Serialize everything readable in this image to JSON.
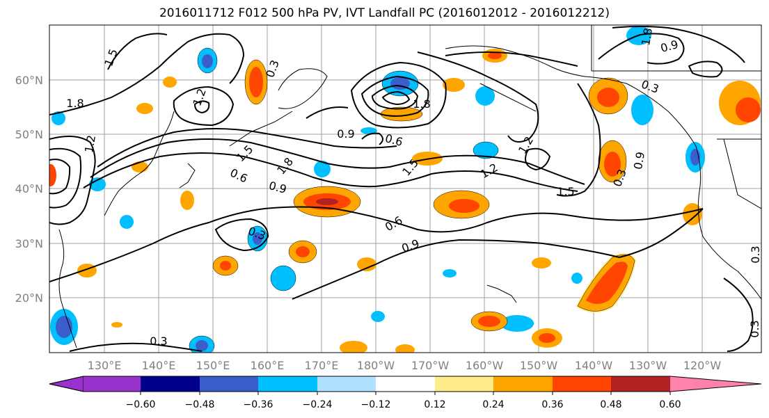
{
  "title": "2016011712 F012 500 hPa PV, IVT Landfall PC (2016012012 - 2016012212)",
  "map": {
    "lat_labels": [
      "60°N",
      "50°N",
      "40°N",
      "30°N",
      "20°N"
    ],
    "lon_labels": [
      "130°E",
      "140°E",
      "150°E",
      "160°E",
      "170°E",
      "180°W",
      "170°W",
      "160°W",
      "150°W",
      "140°W",
      "130°W",
      "120°W"
    ],
    "contour_labels": [
      "1.5",
      "1.8",
      "1.2",
      "0.3",
      "0.6",
      "0.9",
      "1.2",
      "1.8",
      "0.9",
      "0.6",
      "1.5",
      "1.8",
      "0.6",
      "0.9",
      "1.5",
      "1.2",
      "0.3",
      "0.3",
      "0.3",
      "1.2",
      "1.5",
      "0.9",
      "0.3",
      "0.9",
      "1.8",
      "0.3",
      "0.3"
    ],
    "contour_field": "500 hPa PV",
    "shaded_field": "IVT Landfall PC"
  },
  "colorbar": {
    "colors": [
      "#9932cc",
      "#00008b",
      "#3a5fcd",
      "#00bfff",
      "#b0e2ff",
      "#ffffff",
      "#ffec8b",
      "#ffa500",
      "#ff4500",
      "#b22222",
      "#ff82ab"
    ],
    "tick_labels": [
      "−0.60",
      "−0.48",
      "−0.36",
      "−0.24",
      "−0.12",
      "0.12",
      "0.24",
      "0.36",
      "0.48",
      "0.60"
    ]
  }
}
